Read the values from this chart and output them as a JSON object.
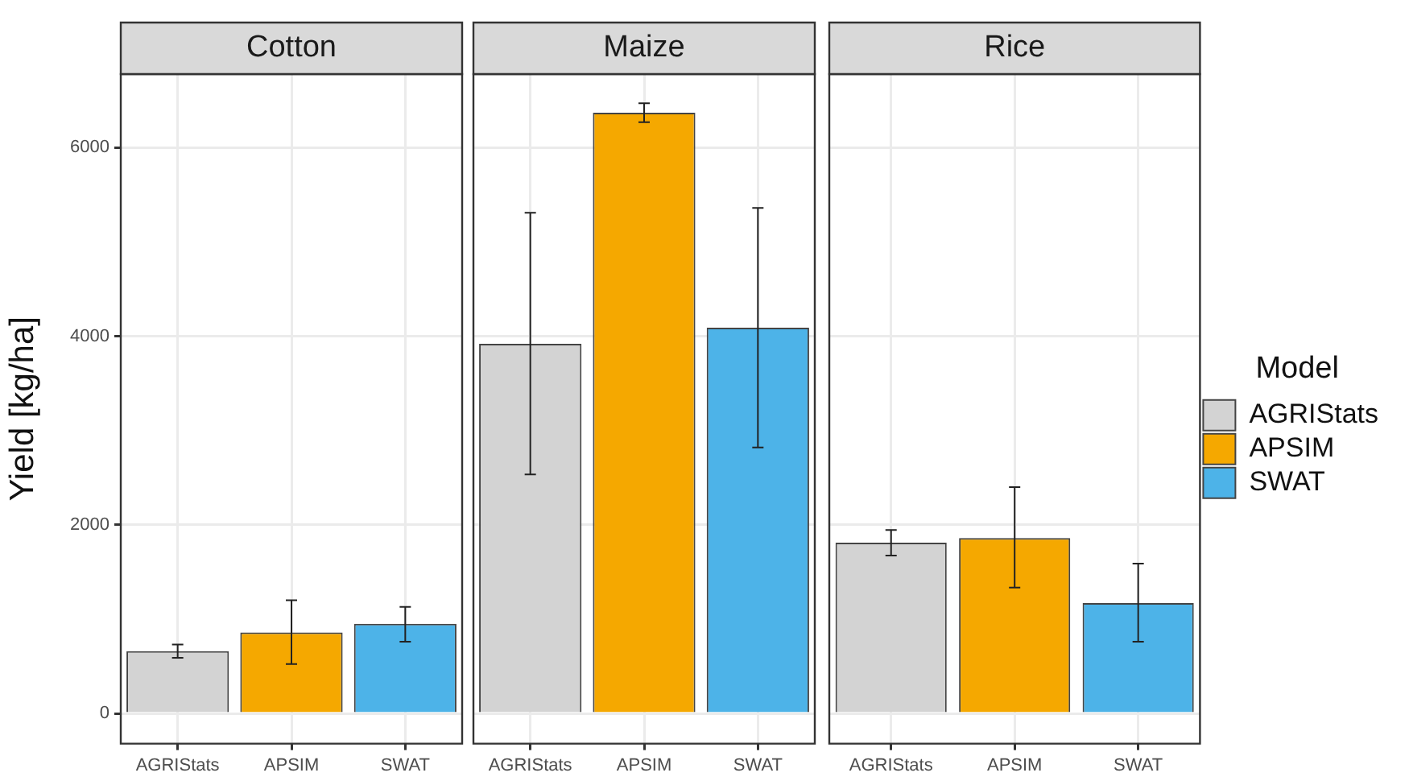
{
  "chart_data": [
    {
      "type": "bar",
      "title": "Cotton",
      "ylabel": "Yield [kg/ha]",
      "categories": [
        "AGRIStats",
        "APSIM",
        "SWAT"
      ],
      "series": [
        {
          "color": "#d3d3d3",
          "values": [
            660,
            null,
            null
          ],
          "errors": [
            [
              590,
              730
            ],
            null,
            null
          ]
        },
        {
          "color": "#f5a800",
          "values": [
            null,
            860,
            null
          ],
          "errors": [
            null,
            [
              525,
              1200
            ],
            null
          ]
        },
        {
          "color": "#4db3e8",
          "values": [
            null,
            null,
            950
          ],
          "errors": [
            null,
            null,
            [
              760,
              1130
            ]
          ]
        }
      ],
      "ylim": [
        -320,
        6780
      ],
      "yticks": [
        0,
        2000,
        4000,
        6000
      ],
      "grid": true
    },
    {
      "type": "bar",
      "title": "Maize",
      "categories": [
        "AGRIStats",
        "APSIM",
        "SWAT"
      ],
      "series": [
        {
          "color": "#d3d3d3",
          "values": [
            3920,
            null,
            null
          ],
          "errors": [
            [
              2535,
              5310
            ],
            null,
            null
          ]
        },
        {
          "color": "#f5a800",
          "values": [
            null,
            6370,
            null
          ],
          "errors": [
            null,
            [
              6270,
              6470
            ],
            null
          ]
        },
        {
          "color": "#4db3e8",
          "values": [
            null,
            null,
            4090
          ],
          "errors": [
            null,
            null,
            [
              2820,
              5360
            ]
          ]
        }
      ],
      "ylim": [
        -320,
        6780
      ],
      "yticks": [
        0,
        2000,
        4000,
        6000
      ],
      "grid": true,
      "tick_labels": "x"
    },
    {
      "type": "bar",
      "title": "Rice",
      "categories": [
        "AGRIStats",
        "APSIM",
        "SWAT"
      ],
      "series": [
        {
          "name": "AGRIStats",
          "color": "#d3d3d3",
          "values": [
            1810,
            null,
            null
          ],
          "errors": [
            [
              1675,
              1945
            ],
            null,
            null
          ]
        },
        {
          "name": "APSIM",
          "color": "#f5a800",
          "values": [
            null,
            1860,
            null
          ],
          "errors": [
            null,
            [
              1335,
              2400
            ],
            null
          ]
        },
        {
          "name": "SWAT",
          "color": "#4db3e8",
          "values": [
            null,
            null,
            1170
          ],
          "errors": [
            null,
            null,
            [
              760,
              1590
            ]
          ]
        }
      ],
      "ylim": [
        -320,
        6780
      ],
      "yticks": [
        0,
        2000,
        4000,
        6000
      ],
      "grid": true,
      "tick_labels": "x",
      "legend": "right",
      "legend_title": "Model"
    }
  ]
}
